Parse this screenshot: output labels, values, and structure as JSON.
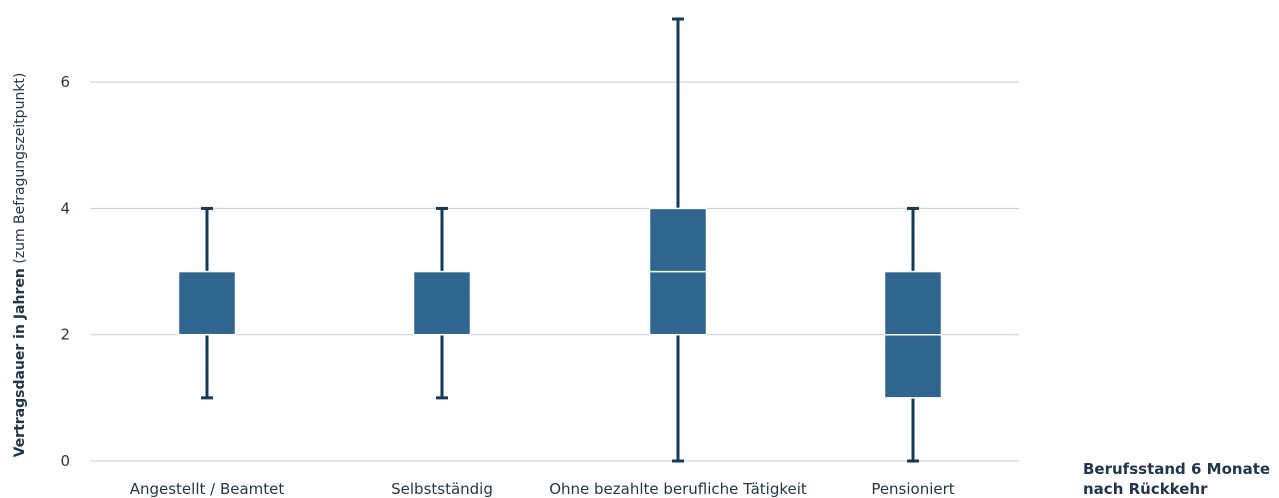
{
  "chart_data": {
    "type": "boxplot",
    "ylabel_bold": "Vertragsdauer in Jahren",
    "ylabel_normal": " (zum Befragungszeitpunkt)",
    "xlabel_line1": "Berufsstand 6 Monate",
    "xlabel_line2": "nach Rückkehr",
    "ylim": [
      0,
      7
    ],
    "yticks": [
      0,
      2,
      4,
      6
    ],
    "grid": true,
    "colors": {
      "box": "#2f6690",
      "whisker": "#0f3b5c",
      "grid": "#c9ccd9",
      "text": "#1f3550"
    },
    "categories": [
      "Angestellt / Beamtet",
      "Selbstständig",
      "Ohne bezahlte berufliche Tätigkeit",
      "Pensioniert"
    ],
    "boxes": [
      {
        "min": 1,
        "q1": 2,
        "median": 2,
        "q3": 3,
        "max": 4
      },
      {
        "min": 1,
        "q1": 2,
        "median": 2,
        "q3": 3,
        "max": 4
      },
      {
        "min": 0,
        "q1": 2,
        "median": 3,
        "q3": 4,
        "max": 7
      },
      {
        "min": 0,
        "q1": 1,
        "median": 2,
        "q3": 3,
        "max": 4
      }
    ]
  }
}
